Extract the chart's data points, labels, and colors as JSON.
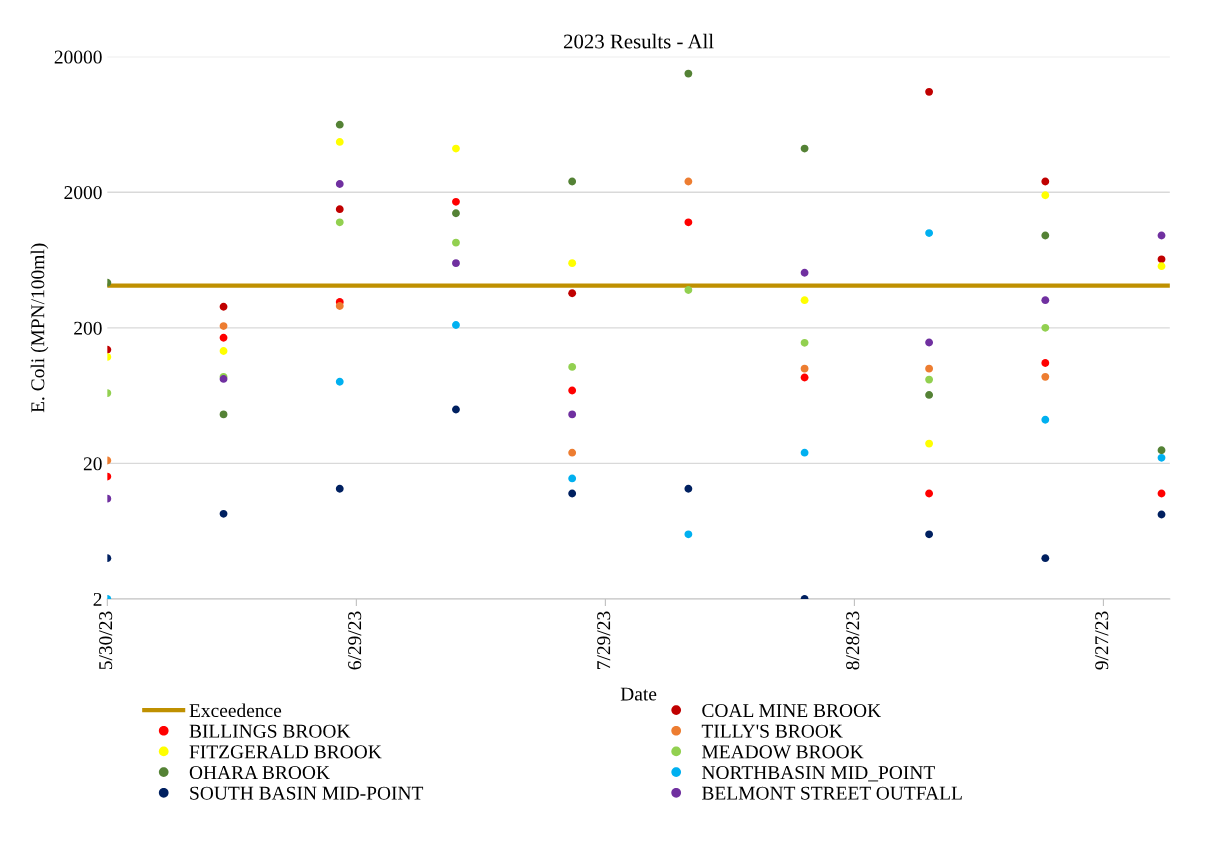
{
  "chart_data": {
    "type": "scatter",
    "title": "2023 Results - All",
    "xlabel": "Date",
    "ylabel": "E. Coli (MPN/100ml)",
    "x": [
      "2023-05-30",
      "2023-06-13",
      "2023-06-27",
      "2023-07-11",
      "2023-07-25",
      "2023-08-08",
      "2023-08-22",
      "2023-09-06",
      "2023-09-20",
      "2023-10-04"
    ],
    "series": [
      {
        "name": "COAL MINE BROOK",
        "color": "#c00000",
        "values": [
          138,
          286,
          1500,
          null,
          360,
          null,
          null,
          11000,
          2400,
          640
        ]
      },
      {
        "name": "BILLINGS BROOK",
        "color": "#ff0000",
        "values": [
          16,
          169,
          310,
          1700,
          69,
          1200,
          86,
          12,
          110,
          12
        ]
      },
      {
        "name": "TILLY'S BROOK",
        "color": "#ed7d31",
        "values": [
          21,
          206,
          290,
          null,
          24,
          2400,
          100,
          100,
          87,
          null
        ]
      },
      {
        "name": "FITZGERALD BROOK",
        "color": "#ffff00",
        "values": [
          122,
          135,
          4700,
          4200,
          600,
          null,
          320,
          28,
          1900,
          570
        ]
      },
      {
        "name": "MEADOW BROOK",
        "color": "#92d050",
        "values": [
          66,
          87,
          1200,
          850,
          103,
          380,
          155,
          83,
          200,
          null
        ]
      },
      {
        "name": "OHARA BROOK",
        "color": "#548235",
        "values": [
          430,
          46,
          6300,
          1400,
          2400,
          15000,
          4200,
          64,
          960,
          25
        ]
      },
      {
        "name": "NORTHBASIN MID_POINT",
        "color": "#00b0f0",
        "values": [
          2,
          null,
          80,
          210,
          15.5,
          6,
          24,
          1000,
          42,
          22
        ]
      },
      {
        "name": "SOUTH BASIN MID-POINT",
        "color": "#002060",
        "values": [
          4,
          8.5,
          13,
          50,
          12,
          13,
          2,
          6,
          4,
          8.4
        ]
      },
      {
        "name": "BELMONT STREET OUTFALL",
        "color": "#7030a0",
        "values": [
          11,
          84,
          2300,
          600,
          46,
          null,
          510,
          156,
          320,
          960
        ]
      }
    ],
    "ref_lines": [
      {
        "axis": "y",
        "value": 410,
        "label": "Exceedence",
        "color": "#bf9000"
      }
    ],
    "log": "y",
    "ylim": [
      2,
      20000
    ],
    "yticks": [
      2,
      20,
      200,
      2000,
      20000
    ],
    "xlim": [
      "2023-05-30",
      "2023-10-05"
    ],
    "xticks": [
      {
        "value": "2023-05-30",
        "label": "5/30/23"
      },
      {
        "value": "2023-06-29",
        "label": "6/29/23"
      },
      {
        "value": "2023-07-29",
        "label": "7/29/23"
      },
      {
        "value": "2023-08-28",
        "label": "8/28/23"
      },
      {
        "value": "2023-09-27",
        "label": "9/27/23"
      }
    ],
    "grid": "y",
    "legend": "bottom",
    "marker": "circle"
  }
}
